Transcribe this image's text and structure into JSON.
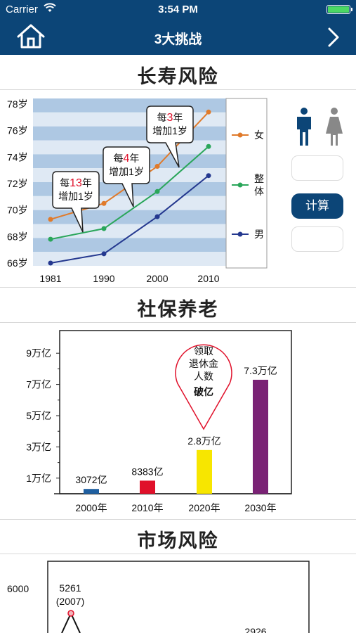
{
  "status_bar": {
    "carrier": "Carrier",
    "time": "3:54 PM"
  },
  "nav": {
    "title": "3大挑战",
    "home_icon": "home-icon",
    "back_icon": "chevron-right-icon",
    "color": "#0c4577"
  },
  "sections": {
    "longevity": {
      "title": "长寿风险"
    },
    "pension": {
      "title": "社保养老"
    },
    "market": {
      "title": "市场风险"
    }
  },
  "longevity_side": {
    "male_icon": "male-person-icon",
    "female_icon": "female-person-icon",
    "calc_label": "计算",
    "age_input_value": "",
    "result_value": ""
  },
  "chart_data": [
    {
      "type": "line",
      "title": "长寿风险",
      "x": [
        "1981",
        "1990",
        "2000",
        "2010"
      ],
      "y_ticks": [
        "66岁",
        "68岁",
        "70岁",
        "72岁",
        "74岁",
        "76岁",
        "78岁"
      ],
      "ylim": [
        66,
        78
      ],
      "series": [
        {
          "name": "女",
          "values": [
            69.3,
            70.5,
            73.3,
            77.4
          ],
          "color": "#e07a2a"
        },
        {
          "name": "整体",
          "values": [
            67.8,
            68.6,
            71.4,
            74.8
          ],
          "color": "#2aa65a"
        },
        {
          "name": "男",
          "values": [
            66.0,
            66.7,
            69.5,
            72.6
          ],
          "color": "#24388f"
        }
      ],
      "annotations": [
        {
          "prefix": "每",
          "highlight": "13",
          "suffix": "年",
          "line2": "增加1岁"
        },
        {
          "prefix": "每",
          "highlight": "4",
          "suffix": "年",
          "line2": "增加1岁"
        },
        {
          "prefix": "每",
          "highlight": "3",
          "suffix": "年",
          "line2": "增加1岁"
        }
      ],
      "legend": "right"
    },
    {
      "type": "bar",
      "title": "社保养老",
      "categories": [
        "2000年",
        "2010年",
        "2020年",
        "2030年"
      ],
      "values": [
        0.3072,
        0.8383,
        2.8,
        7.3
      ],
      "value_labels": [
        "3072亿",
        "8383亿",
        "2.8万亿",
        "7.3万亿"
      ],
      "colors": [
        "#1f5fa0",
        "#e0102a",
        "#f7e600",
        "#7a2275"
      ],
      "y_ticks": [
        "1万亿",
        "3万亿",
        "5万亿",
        "7万亿",
        "9万亿"
      ],
      "ylim": [
        0,
        10
      ],
      "callout": {
        "lines": [
          "领取",
          "退休金",
          "人数"
        ],
        "highlight": "破亿"
      }
    },
    {
      "type": "line",
      "title": "市场风险",
      "y_ticks": [
        "6000"
      ],
      "annotations": [
        {
          "value": "5261",
          "label": "(2007)"
        },
        {
          "value": "2926",
          "label": ""
        }
      ]
    }
  ]
}
